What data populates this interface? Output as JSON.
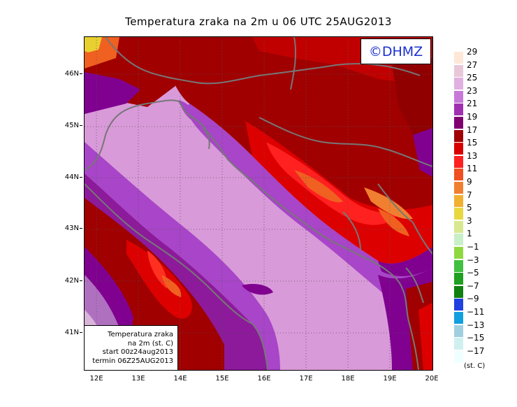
{
  "map": {
    "title": "Temperatura zraka na 2m u 06 UTC 25AUG2013",
    "badge": "©DHMZ",
    "info_lines": [
      "Temperatura zraka",
      "na 2m (st. C)",
      "start 00z24aug2013",
      "termin 06Z25AUG2013"
    ],
    "lat_labels": [
      "46N",
      "45N",
      "44N",
      "43N",
      "42N",
      "41N"
    ],
    "lon_labels": [
      "12E",
      "13E",
      "14E",
      "15E",
      "16E",
      "17E",
      "18E",
      "19E",
      "20E"
    ],
    "colors": {
      "sea": "#d99ad9",
      "coast_purple": "#a845c8",
      "deep_purple": "#800090",
      "dark_red": "#a00000",
      "red": "#dd0000",
      "bright_red": "#ff2020",
      "orange": "#f06020",
      "yellow": "#e8d030",
      "pale": "#d8b4d8",
      "coastline": "#777777"
    }
  },
  "legend": {
    "unit": "(st. C)",
    "labels": [
      "29",
      "27",
      "25",
      "23",
      "21",
      "19",
      "17",
      "15",
      "13",
      "11",
      "9",
      "7",
      "5",
      "3",
      "1",
      "−1",
      "−3",
      "−5",
      "−7",
      "−9",
      "−11",
      "−13",
      "−15",
      "−17"
    ],
    "colors": [
      "#fde8d8",
      "#e8c8d8",
      "#e0b0e0",
      "#c878d8",
      "#a030b0",
      "#800070",
      "#a00000",
      "#d80000",
      "#ff2020",
      "#f05020",
      "#f08030",
      "#f0b030",
      "#e8d840",
      "#d8e890",
      "#c8f0c8",
      "#90d840",
      "#40c040",
      "#20a020",
      "#108010",
      "#2040e0",
      "#10a0e0",
      "#a0d0e0",
      "#d0f0f0",
      "#f0ffff"
    ]
  }
}
